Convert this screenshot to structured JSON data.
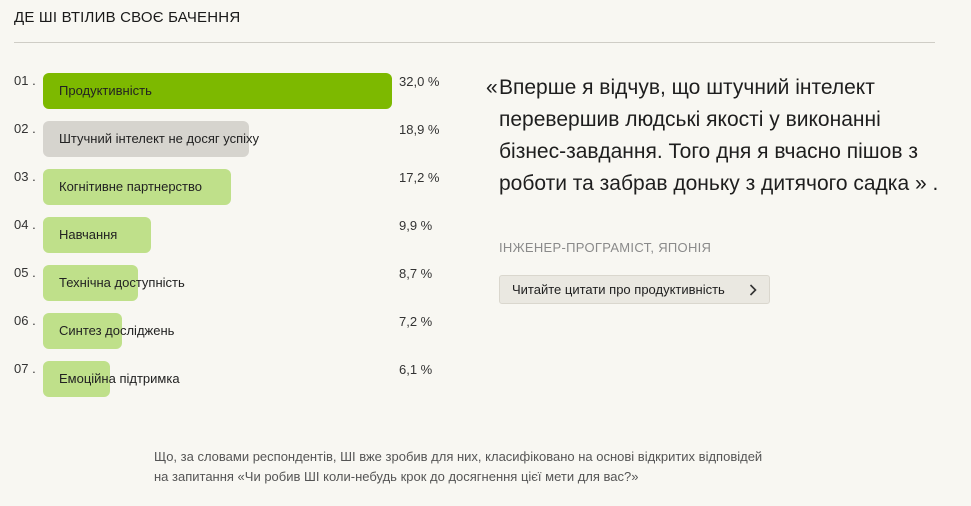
{
  "section": {
    "title": "ДЕ ШІ ВТІЛИВ СВОЄ БАЧЕННЯ"
  },
  "colors": {
    "accent": "#7db900",
    "neutral": "#d6d4ce",
    "light_green": "#bfe08a"
  },
  "chart_data": {
    "type": "bar",
    "orientation": "horizontal",
    "value_max": 32.0,
    "items": [
      {
        "rank": "01 .",
        "label": "Продуктивність",
        "value": 32.0,
        "value_text": "32,0 %",
        "color": "#7db900"
      },
      {
        "rank": "02 .",
        "label": "Штучний інтелект не досяг успіху",
        "value": 18.9,
        "value_text": "18,9 %",
        "color": "#d6d4ce"
      },
      {
        "rank": "03 .",
        "label": "Когнітивне партнерство",
        "value": 17.2,
        "value_text": "17,2 %",
        "color": "#bfe08a"
      },
      {
        "rank": "04 .",
        "label": "Навчання",
        "value": 9.9,
        "value_text": "9,9 %",
        "color": "#bfe08a"
      },
      {
        "rank": "05 .",
        "label": "Технічна доступність",
        "value": 8.7,
        "value_text": "8,7 %",
        "color": "#bfe08a"
      },
      {
        "rank": "06 .",
        "label": "Синтез досліджень",
        "value": 7.2,
        "value_text": "7,2 %",
        "color": "#bfe08a"
      },
      {
        "rank": "07 .",
        "label": "Емоційна підтримка",
        "value": 6.1,
        "value_text": "6,1 %",
        "color": "#bfe08a"
      }
    ]
  },
  "quote": {
    "open_mark": "«",
    "text": "Вперше я відчув, що штучний інтелект перевершив людські якості у виконанні бізнес-завдання. Того дня я вчасно пішов з роботи та забрав доньку з дитячого садка » .",
    "source": "ІНЖЕНЕР-ПРОГРАМІСТ, ЯПОНІЯ"
  },
  "cta": {
    "label": "Читайте цитати про продуктивність",
    "icon": "chevron-right-icon"
  },
  "footnote": "Що, за словами респондентів, ШІ вже зробив для них, класифіковано на основі відкритих відповідей на запитання «Чи робив ШІ коли-небудь крок до досягнення цієї мети для вас?»"
}
